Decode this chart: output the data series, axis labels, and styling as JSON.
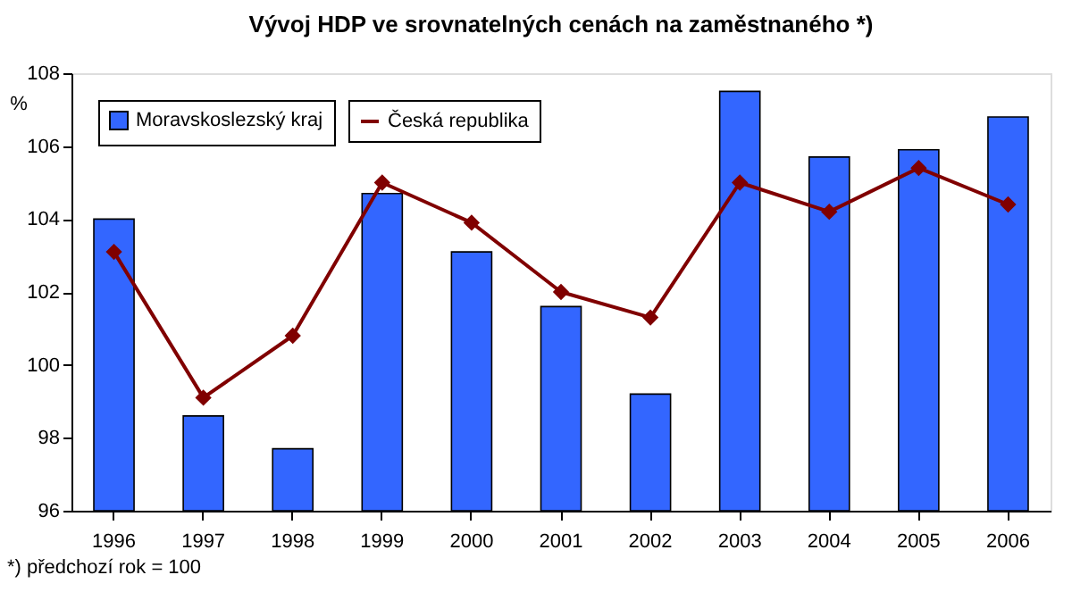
{
  "chart_data": {
    "type": "bar",
    "title": "Vývoj HDP ve srovnatelných cenách na zaměstnaného *)",
    "ylabel": "%",
    "categories": [
      "1996",
      "1997",
      "1998",
      "1999",
      "2000",
      "2001",
      "2002",
      "2003",
      "2004",
      "2005",
      "2006"
    ],
    "series": [
      {
        "name": "Moravskoslezský kraj",
        "color": "#3366ff",
        "values": [
          104.0,
          98.6,
          97.7,
          104.7,
          103.1,
          101.6,
          99.2,
          107.5,
          105.7,
          105.9,
          106.8
        ]
      },
      {
        "name": "Česká republika",
        "type": "line",
        "color": "#800000",
        "marker": "diamond",
        "values": [
          103.1,
          99.1,
          100.8,
          105.0,
          103.9,
          102.0,
          101.3,
          105.0,
          104.2,
          105.4,
          104.4
        ]
      }
    ],
    "ylim": [
      96,
      108
    ],
    "yticks": [
      96,
      98,
      100,
      102,
      104,
      106,
      108
    ],
    "grid": false,
    "legend": "top left",
    "annotations": [
      "*) předchozí rok = 100"
    ]
  }
}
